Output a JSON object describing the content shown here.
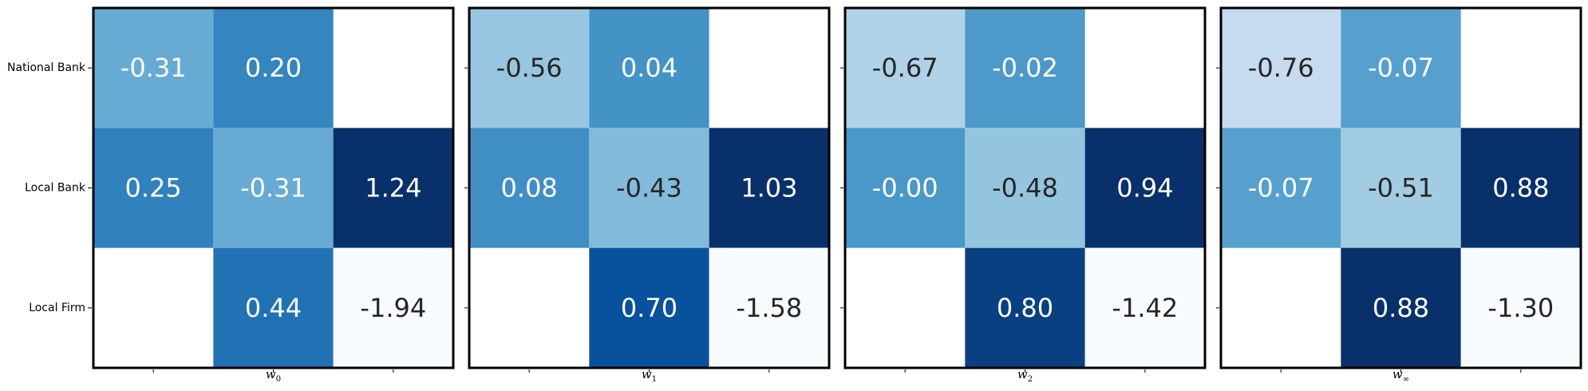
{
  "chart_data": {
    "type": "heatmap",
    "colormap": "Blues",
    "row_labels": [
      "National Bank",
      "Local Bank",
      "Local Firm"
    ],
    "grid": false,
    "panels": [
      {
        "xlabel": {
          "base": "w",
          "sub": "0"
        },
        "values": [
          [
            -0.31,
            0.2,
            null
          ],
          [
            0.25,
            -0.31,
            1.24
          ],
          [
            null,
            0.44,
            -1.94
          ]
        ],
        "labels": [
          [
            "-0.31",
            "0.20",
            ""
          ],
          [
            "0.25",
            "-0.31",
            "1.24"
          ],
          [
            "",
            "0.44",
            "-1.94"
          ]
        ]
      },
      {
        "xlabel": {
          "base": "w",
          "sub": "1"
        },
        "values": [
          [
            -0.56,
            0.04,
            null
          ],
          [
            0.08,
            -0.43,
            1.03
          ],
          [
            null,
            0.7,
            -1.58
          ]
        ],
        "labels": [
          [
            "-0.56",
            "0.04",
            ""
          ],
          [
            "0.08",
            "-0.43",
            "1.03"
          ],
          [
            "",
            "0.70",
            "-1.58"
          ]
        ]
      },
      {
        "xlabel": {
          "base": "w",
          "sub": "2"
        },
        "values": [
          [
            -0.67,
            -0.02,
            null
          ],
          [
            -0.0,
            -0.48,
            0.94
          ],
          [
            null,
            0.8,
            -1.42
          ]
        ],
        "labels": [
          [
            "-0.67",
            "-0.02",
            ""
          ],
          [
            "-0.00",
            "-0.48",
            "0.94"
          ],
          [
            "",
            "0.80",
            "-1.42"
          ]
        ]
      },
      {
        "xlabel": {
          "base": "w",
          "sub": "∞"
        },
        "values": [
          [
            -0.76,
            -0.07,
            null
          ],
          [
            -0.07,
            -0.51,
            0.88
          ],
          [
            null,
            0.88,
            -1.3
          ]
        ],
        "labels": [
          [
            "-0.76",
            "-0.07",
            ""
          ],
          [
            "-0.07",
            "-0.51",
            "0.88"
          ],
          [
            "",
            "0.88",
            "-1.30"
          ]
        ]
      }
    ]
  }
}
